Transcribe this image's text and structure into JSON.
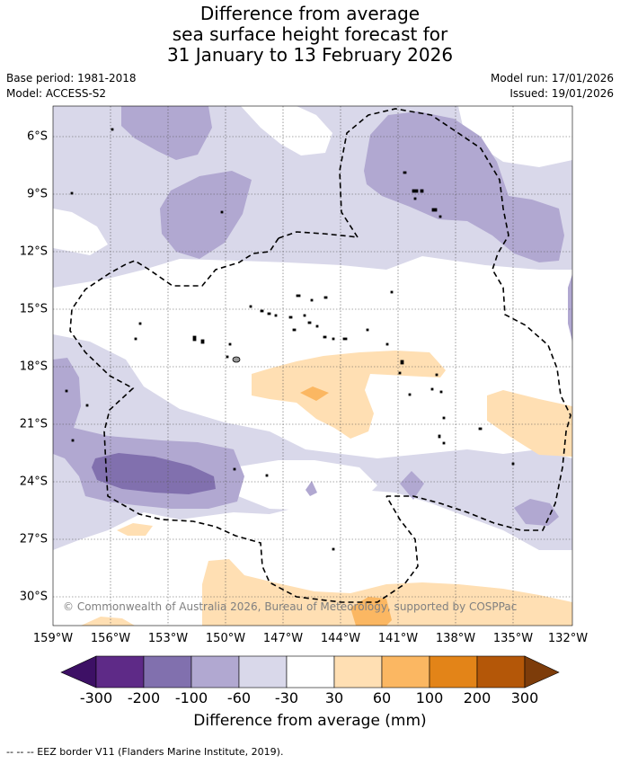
{
  "title": {
    "line1": "Difference from average",
    "line2": "sea surface height forecast for",
    "line3": "31 January to 13 February 2026"
  },
  "meta": {
    "base_period": "Base period: 1981-2018",
    "model": "Model: ACCESS-S2",
    "model_run": "Model run: 17/01/2026",
    "issued": "Issued: 19/01/2026"
  },
  "map": {
    "lat_labels": [
      "6°S",
      "9°S",
      "12°S",
      "15°S",
      "18°S",
      "21°S",
      "24°S",
      "27°S",
      "30°S"
    ],
    "lon_labels": [
      "159°W",
      "156°W",
      "153°W",
      "150°W",
      "147°W",
      "144°W",
      "141°W",
      "138°W",
      "135°W",
      "132°W"
    ],
    "copyright": "© Commonwealth of Australia 2026, Bureau of Meteorology, supported by COSPPac"
  },
  "colorbar": {
    "title": "Difference from average (mm)",
    "ticks": [
      "-300",
      "-200",
      "-100",
      "-60",
      "-30",
      "30",
      "60",
      "100",
      "200",
      "300"
    ],
    "colors": {
      "below": "#3d1065",
      "c1": "#5e2a87",
      "c2": "#8170ae",
      "c3": "#b1a8d1",
      "c4": "#d9d8ea",
      "c5": "#ffffff",
      "c6": "#ffdfb3",
      "c7": "#fbb762",
      "c8": "#e38418",
      "c9": "#b45708",
      "above": "#7d3c0a"
    }
  },
  "footnote": "-- -- -- EEZ border V11 (Flanders Marine Institute, 2019)."
}
